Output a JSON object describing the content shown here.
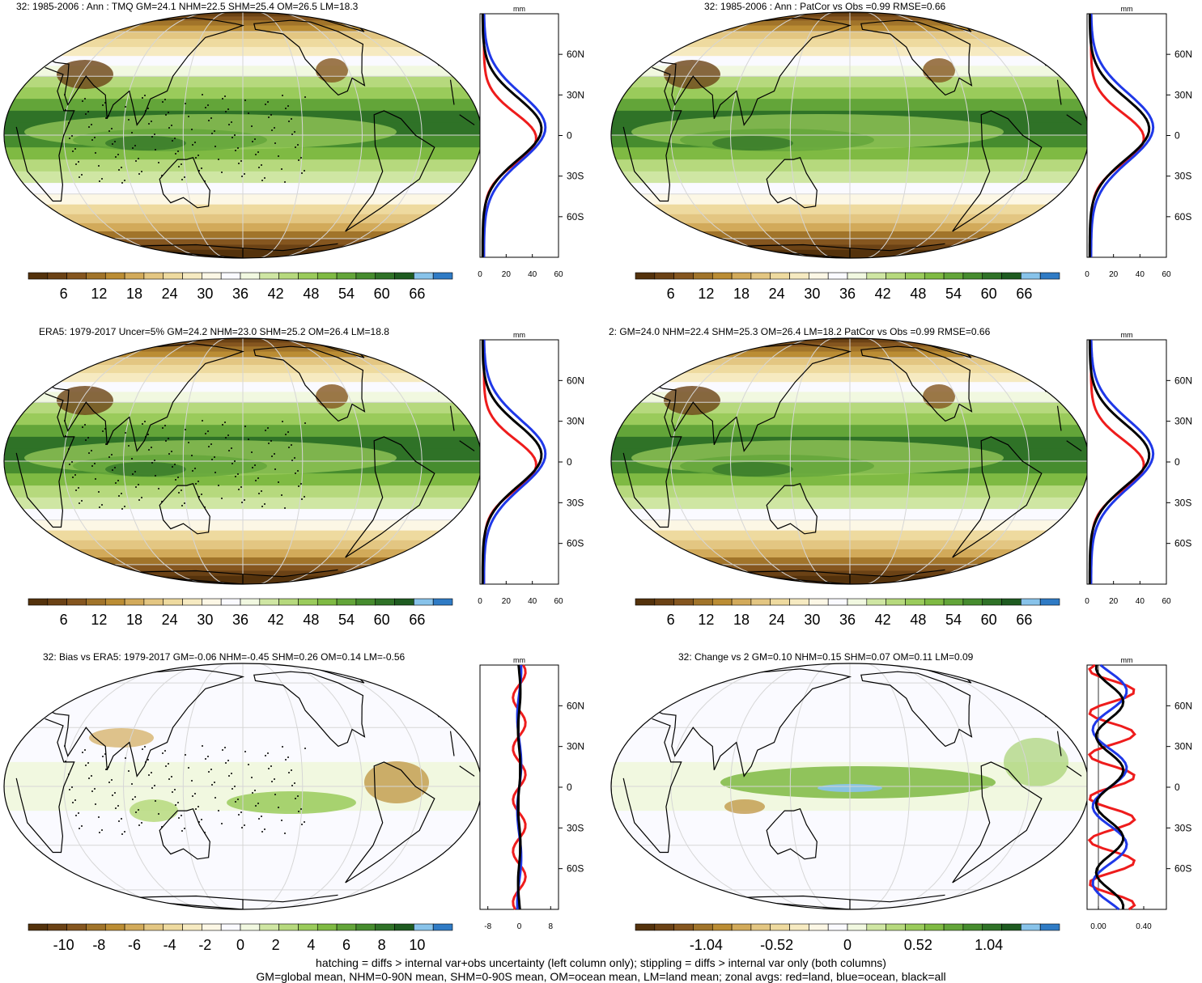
{
  "panels": [
    {
      "id": "p1",
      "title": "32: 1985-2006 : Ann : TMQ GM=24.1 NHM=22.5 SHM=25.4 OM=26.5 LM=18.3",
      "map_style": "clim",
      "stipple": true,
      "colorbar_ticks": [
        "6",
        "12",
        "18",
        "24",
        "30",
        "36",
        "42",
        "48",
        "54",
        "60",
        "66"
      ],
      "profile": {
        "unit": "mm",
        "xticks": [
          "0",
          "20",
          "40",
          "60"
        ],
        "xlim": [
          0,
          60
        ],
        "lat_ticks": [
          "60N",
          "30N",
          "0",
          "30S",
          "60S"
        ]
      }
    },
    {
      "id": "p2",
      "title": "32: 1985-2006 : Ann : PatCor vs Obs =0.99 RMSE=0.66",
      "map_style": "clim",
      "stipple": false,
      "colorbar_ticks": [
        "6",
        "12",
        "18",
        "24",
        "30",
        "36",
        "42",
        "48",
        "54",
        "60",
        "66"
      ],
      "profile": {
        "unit": "mm",
        "xticks": [
          "0",
          "20",
          "40",
          "60"
        ],
        "xlim": [
          0,
          60
        ],
        "lat_ticks": [
          "60N",
          "30N",
          "0",
          "30S",
          "60S"
        ]
      }
    },
    {
      "id": "p3",
      "title": "ERA5: 1979-2017 Uncer=5% GM=24.2 NHM=23.0 SHM=25.2 OM=26.4 LM=18.8",
      "map_style": "clim",
      "stipple": true,
      "colorbar_ticks": [
        "6",
        "12",
        "18",
        "24",
        "30",
        "36",
        "42",
        "48",
        "54",
        "60",
        "66"
      ],
      "profile": {
        "unit": "mm",
        "xticks": [
          "0",
          "20",
          "40",
          "60"
        ],
        "xlim": [
          0,
          60
        ],
        "lat_ticks": [
          "60N",
          "30N",
          "0",
          "30S",
          "60S"
        ]
      }
    },
    {
      "id": "p4",
      "title": "2: GM=24.0 NHM=22.4 SHM=25.3 OM=26.4 LM=18.2 PatCor vs Obs =0.99 RMSE=0.66",
      "map_style": "clim",
      "stipple": false,
      "colorbar_ticks": [
        "6",
        "12",
        "18",
        "24",
        "30",
        "36",
        "42",
        "48",
        "54",
        "60",
        "66"
      ],
      "profile": {
        "unit": "mm",
        "xticks": [
          "0",
          "20",
          "40",
          "60"
        ],
        "xlim": [
          0,
          60
        ],
        "lat_ticks": [
          "60N",
          "30N",
          "0",
          "30S",
          "60S"
        ]
      }
    },
    {
      "id": "p5",
      "title": "32: Bias vs ERA5: 1979-2017 GM=-0.06 NHM=-0.45 SHM=0.26 OM=0.14 LM=-0.56",
      "map_style": "diff",
      "stipple": true,
      "colorbar_ticks": [
        "-10",
        "-8",
        "-6",
        "-4",
        "-2",
        "0",
        "2",
        "4",
        "6",
        "8",
        "10"
      ],
      "profile": {
        "unit": "mm",
        "xticks": [
          "-8",
          "0",
          "8"
        ],
        "xlim": [
          -10,
          10
        ],
        "lat_ticks": [
          "60N",
          "30N",
          "0",
          "30S",
          "60S"
        ]
      }
    },
    {
      "id": "p6",
      "title": "32: Change vs 2 GM=0.10 NHM=0.15 SHM=0.07 OM=0.11 LM=0.09",
      "map_style": "change",
      "stipple": false,
      "colorbar_ticks": [
        "-1.04",
        "-0.52",
        "0",
        "0.52",
        "1.04"
      ],
      "profile": {
        "unit": "mm",
        "xticks": [
          "0.00",
          "0.40"
        ],
        "xlim": [
          -0.1,
          0.6
        ],
        "lat_ticks": [
          "60N",
          "30N",
          "0",
          "30S",
          "60S"
        ]
      }
    }
  ],
  "colors": {
    "palette": [
      "#54320c",
      "#6b4215",
      "#85561f",
      "#a1742a",
      "#bb8d34",
      "#d2aa5a",
      "#e3c682",
      "#eeda9f",
      "#f6eac1",
      "#fcf7e5",
      "#fafaff",
      "#f1f8e0",
      "#cfe6a3",
      "#b6d97d",
      "#9acb5b",
      "#7fba43",
      "#63a539",
      "#468c2e",
      "#2f7227",
      "#1e5b20",
      "#88c3ea",
      "#2f7bc5"
    ],
    "land_profile": "#ee1c1c",
    "ocean_profile": "#1f38e8",
    "all_profile": "#000000"
  },
  "footer": [
    "hatching = diffs > internal var+obs uncertainty (left column only); stippling = diffs > internal var only (both columns)",
    "GM=global mean, NHM=0-90N mean, SHM=0-90S mean, OM=ocean mean, LM=land mean; zonal avgs: red=land, blue=ocean, black=all"
  ]
}
